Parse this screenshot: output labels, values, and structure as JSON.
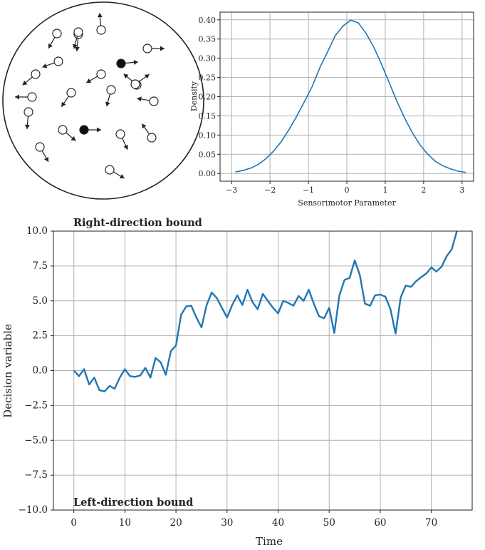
{
  "colors": {
    "line": "#1f77b4",
    "grid": "#b0b0b0",
    "axis": "#222222",
    "dot_fill": "#ffffff",
    "dot_filled": "#111111"
  },
  "dots_panel": {
    "description_free": true,
    "dots": [
      {
        "filled": false,
        "dir": 240
      },
      {
        "filled": false,
        "dir": 265
      },
      {
        "filled": false,
        "dir": 95
      },
      {
        "filled": false,
        "dir": 200
      },
      {
        "filled": false,
        "dir": 0
      },
      {
        "filled": false,
        "dir": 210
      },
      {
        "filled": true,
        "dir": 5
      },
      {
        "filled": false,
        "dir": 220
      },
      {
        "filled": false,
        "dir": 140
      },
      {
        "filled": false,
        "dir": 235
      },
      {
        "filled": false,
        "dir": 255
      },
      {
        "filled": false,
        "dir": 170
      },
      {
        "filled": false,
        "dir": 265
      },
      {
        "filled": true,
        "dir": 0
      },
      {
        "filled": false,
        "dir": 295
      },
      {
        "filled": false,
        "dir": 125
      },
      {
        "filled": false,
        "dir": 300
      },
      {
        "filled": false,
        "dir": 320
      },
      {
        "filled": false,
        "dir": 330
      },
      {
        "filled": false,
        "dir": 180
      },
      {
        "filled": false,
        "dir": 255
      },
      {
        "filled": false,
        "dir": 35
      }
    ]
  },
  "chart_data": [
    {
      "type": "line",
      "xlabel": "Sensorimotor Parameter",
      "ylabel": "Density",
      "xlim": [
        -3.3,
        3.3
      ],
      "ylim": [
        -0.02,
        0.42
      ],
      "xticks": [
        -3,
        -2,
        -1,
        0,
        1,
        2,
        3
      ],
      "xtick_labels": [
        "−3",
        "−2",
        "−1",
        "0",
        "1",
        "2",
        "3"
      ],
      "yticks": [
        0.0,
        0.05,
        0.1,
        0.15,
        0.2,
        0.25,
        0.3,
        0.35,
        0.4
      ],
      "ytick_labels": [
        "0.00",
        "0.05",
        "0.10",
        "0.15",
        "0.20",
        "0.25",
        "0.30",
        "0.35",
        "0.40"
      ],
      "grid": true,
      "series": [
        {
          "x": [
            -2.9,
            -2.7,
            -2.5,
            -2.3,
            -2.1,
            -1.9,
            -1.7,
            -1.5,
            -1.3,
            -1.1,
            -0.9,
            -0.7,
            -0.5,
            -0.3,
            -0.1,
            0.1,
            0.3,
            0.5,
            0.7,
            0.9,
            1.1,
            1.3,
            1.5,
            1.7,
            1.9,
            2.1,
            2.3,
            2.5,
            2.7,
            2.9,
            3.1
          ],
          "values": [
            0.004,
            0.008,
            0.014,
            0.024,
            0.039,
            0.059,
            0.084,
            0.115,
            0.15,
            0.188,
            0.227,
            0.276,
            0.317,
            0.359,
            0.384,
            0.399,
            0.392,
            0.365,
            0.329,
            0.285,
            0.237,
            0.189,
            0.145,
            0.107,
            0.075,
            0.051,
            0.032,
            0.02,
            0.012,
            0.006,
            0.003
          ]
        }
      ]
    },
    {
      "type": "line",
      "xlabel": "Time",
      "ylabel": "Decision variable",
      "xlim": [
        -4,
        78
      ],
      "ylim": [
        -10,
        10
      ],
      "xticks": [
        0,
        10,
        20,
        30,
        40,
        50,
        60,
        70
      ],
      "xtick_labels": [
        "0",
        "10",
        "20",
        "30",
        "40",
        "50",
        "60",
        "70"
      ],
      "yticks": [
        -10,
        -7.5,
        -5,
        -2.5,
        0,
        2.5,
        5,
        7.5,
        10
      ],
      "ytick_labels": [
        "−10.0",
        "−7.5",
        "−5.0",
        "−2.5",
        "0.0",
        "2.5",
        "5.0",
        "7.5",
        "10.0"
      ],
      "grid": true,
      "annotations": [
        "Right-direction bound",
        "Left-direction bound"
      ],
      "series": [
        {
          "x": [
            0,
            1,
            2,
            3,
            4,
            5,
            6,
            7,
            8,
            9,
            10,
            11,
            12,
            13,
            14,
            15,
            16,
            17,
            18,
            19,
            20,
            21,
            22,
            23,
            24,
            25,
            26,
            27,
            28,
            29,
            30,
            31,
            32,
            33,
            34,
            35,
            36,
            37,
            38,
            39,
            40,
            41,
            42,
            43,
            44,
            45,
            46,
            47,
            48,
            49,
            50,
            51,
            52,
            53,
            54,
            55,
            56,
            57,
            58,
            59,
            60,
            61,
            62,
            63,
            64,
            65,
            66,
            67,
            68,
            69,
            70,
            71,
            72,
            73,
            74,
            75
          ],
          "values": [
            0.0,
            -0.4,
            0.1,
            -1.0,
            -0.5,
            -1.4,
            -1.5,
            -1.1,
            -1.3,
            -0.5,
            0.1,
            -0.4,
            -0.45,
            -0.35,
            0.2,
            -0.5,
            0.9,
            0.6,
            -0.3,
            1.4,
            1.8,
            4.0,
            4.6,
            4.65,
            3.8,
            3.1,
            4.7,
            5.6,
            5.2,
            4.5,
            3.8,
            4.7,
            5.4,
            4.7,
            5.8,
            4.9,
            4.4,
            5.5,
            5.0,
            4.5,
            4.1,
            5.0,
            4.85,
            4.65,
            5.35,
            5.0,
            5.8,
            4.8,
            3.9,
            3.75,
            4.5,
            2.7,
            5.4,
            6.5,
            6.65,
            7.9,
            6.85,
            4.8,
            4.65,
            5.4,
            5.45,
            5.3,
            4.4,
            2.65,
            5.25,
            6.1,
            6.0,
            6.4,
            6.7,
            6.95,
            7.4,
            7.1,
            7.45,
            8.2,
            8.7,
            10.0
          ]
        }
      ]
    }
  ]
}
